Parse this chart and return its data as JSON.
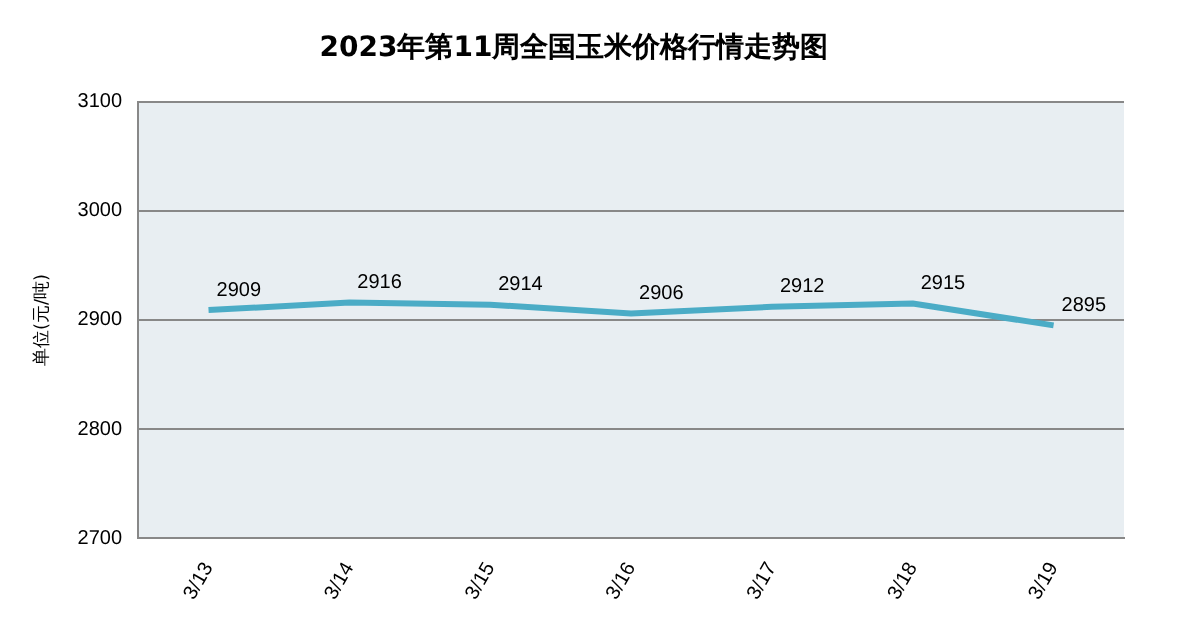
{
  "chart_data": {
    "type": "line",
    "title": "2023年第11周全国玉米价格行情走势图",
    "ylabel": "单位(元/吨)",
    "categories": [
      "3/13",
      "3/14",
      "3/15",
      "3/16",
      "3/17",
      "3/18",
      "3/19"
    ],
    "series": [
      {
        "color": "#4bacc6",
        "values": [
          2909,
          2916,
          2914,
          2906,
          2912,
          2915,
          2895
        ]
      }
    ],
    "ylim": [
      2700,
      3100
    ],
    "yticks": [
      2700,
      2800,
      2900,
      3000,
      3100
    ],
    "grid": "y",
    "legend": false,
    "marker": "none",
    "line_style": "solid",
    "data_labels": true
  }
}
